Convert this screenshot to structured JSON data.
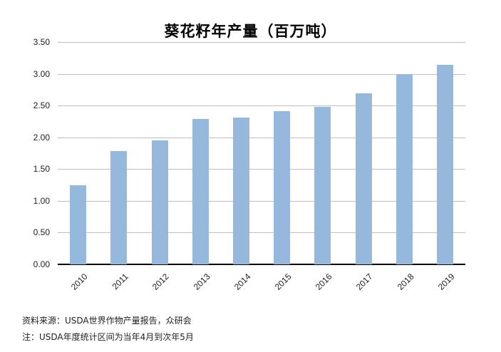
{
  "chart_data": {
    "type": "bar",
    "title": "葵花籽年产量（百万吨）",
    "xlabel": "",
    "ylabel": "",
    "categories": [
      "2010",
      "2011",
      "2012",
      "2013",
      "2014",
      "2015",
      "2016",
      "2017",
      "2018",
      "2019"
    ],
    "values": [
      1.25,
      1.78,
      1.95,
      2.29,
      2.31,
      2.41,
      2.48,
      2.69,
      3.0,
      3.14
    ],
    "ylim": [
      0,
      3.5
    ],
    "yticks": [
      "0.00",
      "0.50",
      "1.00",
      "1.50",
      "2.00",
      "2.50",
      "3.00",
      "3.50"
    ],
    "grid": true,
    "legend": "none",
    "bar_color": "#95b8dc"
  },
  "notes": {
    "source": "资料来源：USDA世界作物产量报告，众研会",
    "remark": "注：USDA年度统计区间为当年4月到次年5月"
  }
}
